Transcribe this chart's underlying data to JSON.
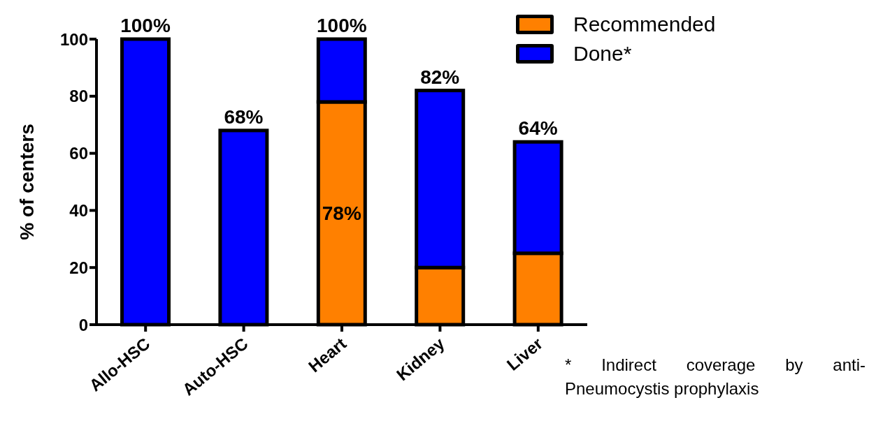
{
  "chart_data": {
    "type": "bar",
    "stacked": true,
    "ylabel": "% of centers",
    "categories": [
      "Allo-HSC",
      "Auto-HSC",
      "Heart",
      "Kidney",
      "Liver"
    ],
    "series": [
      {
        "name": "Recommended",
        "color": "#ff8000",
        "values": [
          0,
          0,
          78,
          20,
          25
        ],
        "value_labels": [
          null,
          null,
          "78%",
          null,
          null
        ]
      },
      {
        "name": "Done*",
        "color": "#0000ff",
        "values": [
          100,
          68,
          22,
          62,
          39
        ]
      }
    ],
    "totals": [
      "100%",
      "68%",
      "100%",
      "82%",
      "64%"
    ],
    "ylim": [
      0,
      100
    ],
    "yticks": [
      0,
      20,
      40,
      60,
      80,
      100
    ],
    "grid": false,
    "legend": "top right",
    "annotations": [
      "* Indirect coverage by anti-Pneumocystis prophylaxis"
    ]
  }
}
